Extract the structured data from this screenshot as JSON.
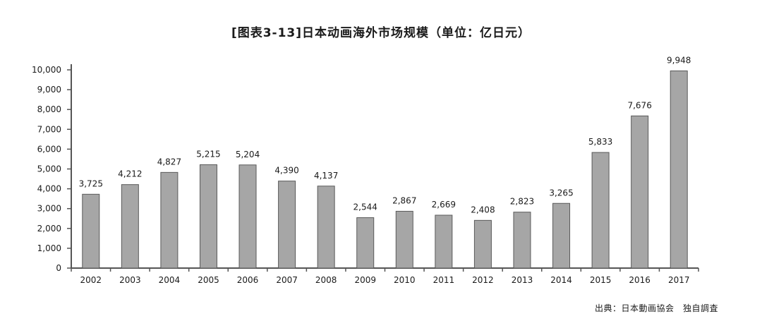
{
  "chart_data": {
    "type": "bar",
    "title": "[图表3-13]日本动画海外市场规模（单位：亿日元）",
    "categories": [
      "2002",
      "2003",
      "2004",
      "2005",
      "2006",
      "2007",
      "2008",
      "2009",
      "2010",
      "2011",
      "2012",
      "2013",
      "2014",
      "2015",
      "2016",
      "2017"
    ],
    "values": [
      3725,
      4212,
      4827,
      5215,
      5204,
      4390,
      4137,
      2544,
      2867,
      2669,
      2408,
      2823,
      3265,
      5833,
      7676,
      9948
    ],
    "value_labels": [
      "3,725",
      "4,212",
      "4,827",
      "5,215",
      "5,204",
      "4,390",
      "4,137",
      "2,544",
      "2,867",
      "2,669",
      "2,408",
      "2,823",
      "3,265",
      "5,833",
      "7,676",
      "9,948"
    ],
    "y_ticks": [
      0,
      1000,
      2000,
      3000,
      4000,
      5000,
      6000,
      7000,
      8000,
      9000,
      10000
    ],
    "y_tick_labels": [
      "0",
      "1,000",
      "2,000",
      "3,000",
      "4,000",
      "5,000",
      "6,000",
      "7,000",
      "8,000",
      "9,000",
      "10,000"
    ],
    "ylim": [
      0,
      10000
    ],
    "grid": false,
    "legend": "none",
    "bar_color": "#a6a6a6",
    "bar_edge_color": "#5a5a5a",
    "axis_color": "#555555"
  },
  "source": "出典：日本動画協会　独自調査"
}
